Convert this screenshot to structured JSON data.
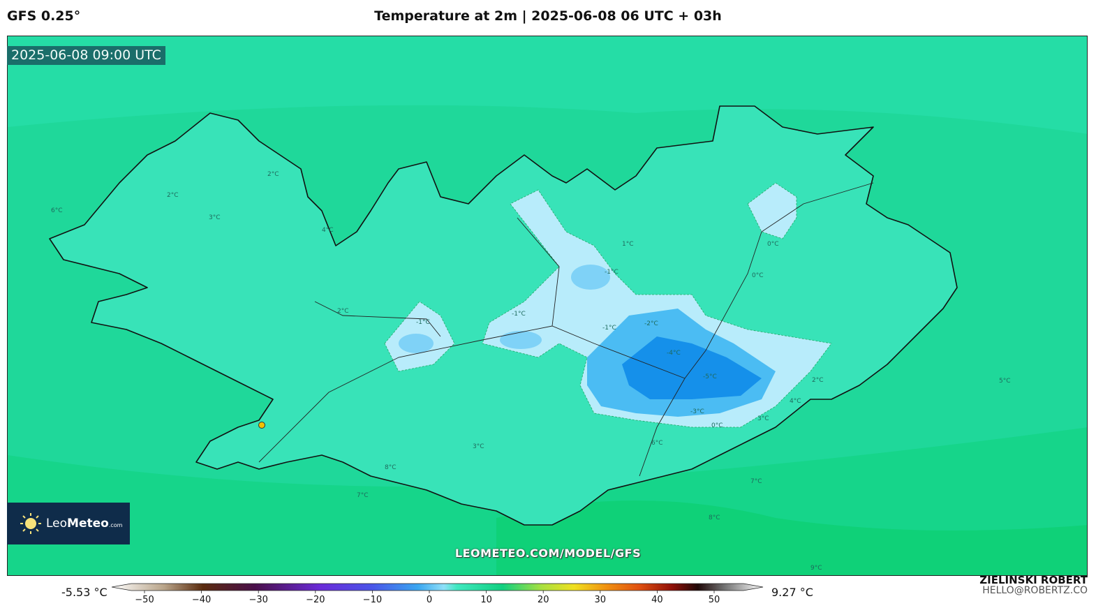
{
  "header": {
    "model": "GFS 0.25°",
    "title": "Temperature at 2m | 2025-06-08 06 UTC + 03h"
  },
  "map": {
    "valid_time": "2025-06-08 09:00 UTC",
    "site_url": "LEOMETEO.COM/MODEL/GFS",
    "contour_labels": [
      "2°C",
      "2°C",
      "3°C",
      "4°C",
      "6°C",
      "2°C",
      "1°C",
      "-1°C",
      "-1°C",
      "-1°C",
      "-1°C",
      "-2°C",
      "-4°C",
      "-5°C",
      "-3°C",
      "0°C",
      "0°C",
      "0°C",
      "2°C",
      "4°C",
      "3°C",
      "6°C",
      "3°C",
      "7°C",
      "8°C",
      "9°C",
      "5°C",
      "7°C",
      "8°C"
    ],
    "city_marker_color": "#f2c200"
  },
  "logo": {
    "brand_light": "Leo",
    "brand_bold": "Meteo",
    "suffix": ".com"
  },
  "legend": {
    "min_label": "-5.53 °C",
    "max_label": "9.27 °C",
    "ticks": [
      "−50",
      "−40",
      "−30",
      "−20",
      "−10",
      "0",
      "10",
      "20",
      "30",
      "40",
      "50"
    ]
  },
  "author": {
    "name": "ZIELINSKI ROBERT",
    "email": "HELLO@ROBERTZ.CO"
  },
  "colors": {
    "sea": "#1fd89a",
    "land": "#3ae6bd",
    "cold": "#b8ecfb",
    "colder": "#4bbcf3",
    "coldest": "#1590ea"
  }
}
